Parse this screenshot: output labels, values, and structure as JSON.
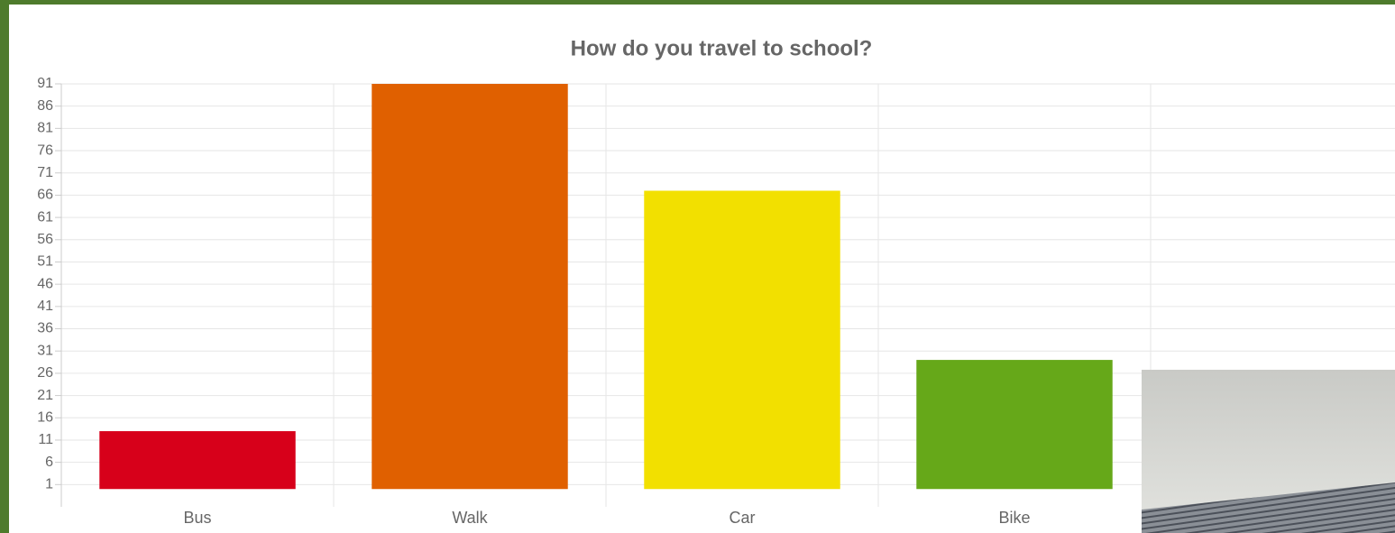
{
  "chart_data": {
    "type": "bar",
    "title": "How do you travel to school?",
    "categories": [
      "Bus",
      "Walk",
      "Car",
      "Bike",
      null
    ],
    "values": [
      13,
      91,
      67,
      29,
      null
    ],
    "colors": [
      "#d7001a",
      "#e06000",
      "#f2e000",
      "#66a819",
      null
    ],
    "ylim": [
      -4,
      91
    ],
    "yticks": [
      1,
      6,
      11,
      16,
      21,
      26,
      31,
      36,
      41,
      46,
      51,
      56,
      61,
      66,
      71,
      76,
      81,
      86,
      91
    ],
    "grid": true
  }
}
